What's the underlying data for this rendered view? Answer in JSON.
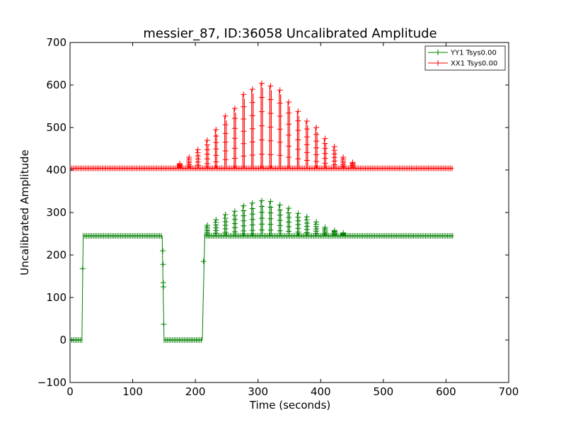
{
  "chart_data": {
    "type": "line",
    "title": "messier_87, ID:36058 Uncalibrated Amplitude",
    "xlabel": "Time (seconds)",
    "ylabel": "Uncalibrated Amplitude",
    "xlim": [
      0,
      700
    ],
    "ylim": [
      -100,
      700
    ],
    "xticks": [
      0,
      100,
      200,
      300,
      400,
      500,
      600,
      700
    ],
    "yticks": [
      -100,
      0,
      100,
      200,
      300,
      400,
      500,
      600,
      700
    ],
    "xtick_labels": [
      "0",
      "100",
      "200",
      "300",
      "400",
      "500",
      "600",
      "700"
    ],
    "ytick_labels": [
      "−100",
      "0",
      "100",
      "200",
      "300",
      "400",
      "500",
      "600",
      "700"
    ],
    "grid": false,
    "legend_position": "top-right",
    "series": [
      {
        "name": "YY1 Tsys0.00",
        "color": "#008000",
        "baseline_segments": [
          {
            "x": [
              0,
              19
            ],
            "y": 0
          },
          {
            "x": [
              21,
              147
            ],
            "y": 245
          },
          {
            "x": [
              150,
              211
            ],
            "y": 0
          },
          {
            "x": [
              215,
              612
            ],
            "y": 245
          }
        ],
        "transition_points": [
          [
            20,
            168
          ],
          [
            148,
            210
          ],
          [
            148.5,
            178
          ],
          [
            148.7,
            135
          ],
          [
            149,
            125
          ],
          [
            149.5,
            37
          ],
          [
            213,
            185
          ]
        ],
        "peaks": [
          [
            219,
            270
          ],
          [
            233,
            283
          ],
          [
            248,
            295
          ],
          [
            263,
            303
          ],
          [
            277,
            316
          ],
          [
            291,
            322
          ],
          [
            306,
            328
          ],
          [
            320,
            326
          ],
          [
            335,
            318
          ],
          [
            349,
            310
          ],
          [
            364,
            298
          ],
          [
            378,
            290
          ],
          [
            393,
            278
          ],
          [
            407,
            265
          ],
          [
            422,
            258
          ],
          [
            436,
            252
          ]
        ]
      },
      {
        "name": "XX1 Tsys0.00",
        "color": "#ff0000",
        "baseline_segments": [
          {
            "x": [
              0,
              612
            ],
            "y": 404
          }
        ],
        "transition_points": [],
        "peaks": [
          [
            175,
            415
          ],
          [
            190,
            430
          ],
          [
            204,
            448
          ],
          [
            219,
            470
          ],
          [
            233,
            495
          ],
          [
            248,
            527
          ],
          [
            263,
            545
          ],
          [
            277,
            578
          ],
          [
            291,
            590
          ],
          [
            306,
            604
          ],
          [
            320,
            598
          ],
          [
            335,
            588
          ],
          [
            349,
            560
          ],
          [
            364,
            538
          ],
          [
            378,
            515
          ],
          [
            393,
            500
          ],
          [
            407,
            474
          ],
          [
            422,
            455
          ],
          [
            436,
            430
          ],
          [
            451,
            418
          ]
        ]
      }
    ]
  }
}
